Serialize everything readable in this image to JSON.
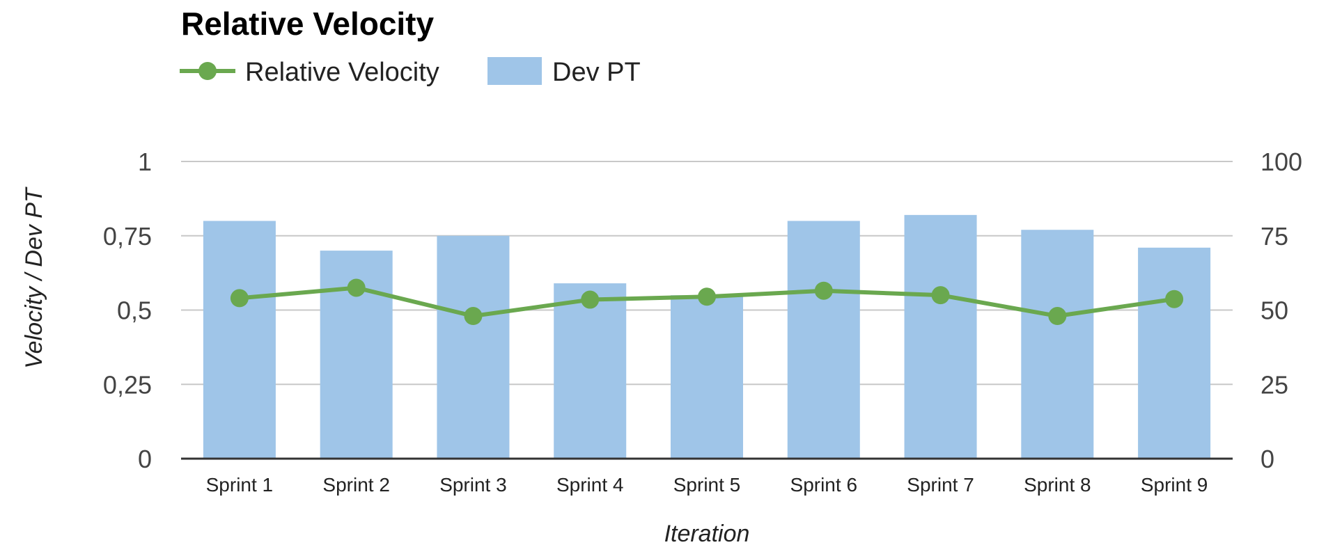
{
  "chart_data": {
    "type": "bar",
    "title": "Relative Velocity",
    "xlabel": "Iteration",
    "ylabel": "Velocity / Dev PT",
    "categories": [
      "Sprint 1",
      "Sprint 2",
      "Sprint 3",
      "Sprint 4",
      "Sprint 5",
      "Sprint 6",
      "Sprint 7",
      "Sprint 8",
      "Sprint 9"
    ],
    "series": [
      {
        "name": "Relative Velocity",
        "type": "line",
        "axis": "left",
        "color": "#6aa84f",
        "values": [
          0.54,
          0.575,
          0.48,
          0.535,
          0.545,
          0.565,
          0.55,
          0.48,
          0.537
        ]
      },
      {
        "name": "Dev PT",
        "type": "bar",
        "axis": "right",
        "color": "#9fc5e8",
        "values": [
          80,
          70,
          75,
          59,
          55,
          80,
          82,
          77,
          71
        ]
      }
    ],
    "left_axis": {
      "ylim": [
        0,
        1
      ],
      "ticks": [
        0,
        0.25,
        0.5,
        0.75,
        1
      ],
      "tick_labels": [
        "0",
        "0,25",
        "0,5",
        "0,75",
        "1"
      ]
    },
    "right_axis": {
      "ylim": [
        0,
        100
      ],
      "ticks": [
        0,
        25,
        50,
        75,
        100
      ],
      "tick_labels": [
        "0",
        "25",
        "50",
        "75",
        "100"
      ]
    },
    "grid": true,
    "legend": "top-left"
  }
}
